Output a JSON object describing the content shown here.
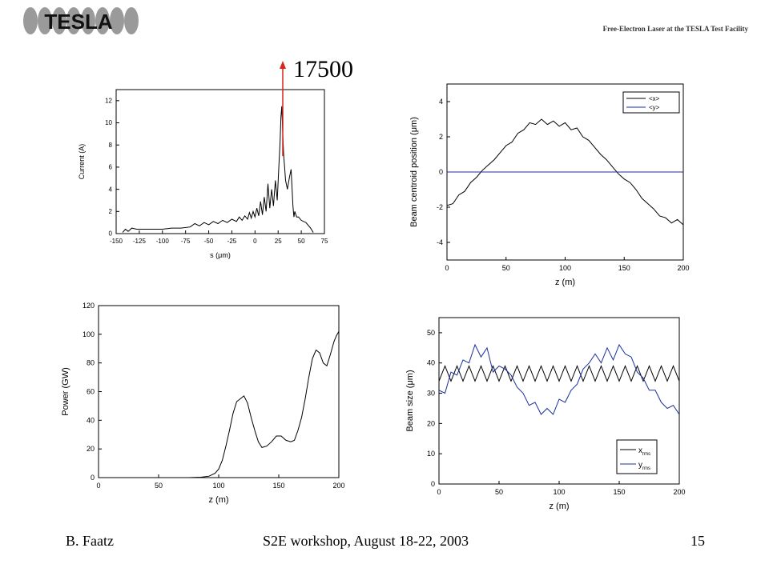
{
  "header": {
    "logo_text": "TESLA",
    "subtitle": "Free-Electron Laser at the TESLA Test Facility"
  },
  "annotation": {
    "text": "17500",
    "color": "#d8261d"
  },
  "footer": {
    "author": "B. Faatz",
    "event": "S2E workshop, August 18-22, 2003",
    "page": "15"
  },
  "chart_data": [
    {
      "type": "line",
      "xlabel": "s (μm)",
      "ylabel": "Current (A)",
      "xlim": [
        -150,
        75
      ],
      "ylim": [
        0,
        13
      ],
      "xticks": [
        -150,
        -125,
        -100,
        -75,
        -50,
        -25,
        0,
        25,
        50,
        75
      ],
      "yticks": [
        0,
        2,
        4,
        6,
        8,
        10,
        12
      ],
      "series": [
        {
          "name": "",
          "color": "#000000",
          "x": [
            -143,
            -140,
            -137,
            -133,
            -128,
            -120,
            -110,
            -100,
            -90,
            -80,
            -70,
            -65,
            -60,
            -55,
            -50,
            -45,
            -40,
            -35,
            -30,
            -25,
            -20,
            -17,
            -14,
            -11,
            -8,
            -6,
            -4,
            -2,
            0,
            2,
            4,
            6,
            8,
            10,
            12,
            14,
            16,
            18,
            20,
            22,
            24,
            26,
            27,
            28,
            29,
            30,
            31,
            32,
            33,
            35,
            37,
            39,
            41,
            42,
            43,
            45,
            47,
            50,
            55,
            60,
            63
          ],
          "y": [
            0.1,
            0.4,
            0.2,
            0.5,
            0.4,
            0.4,
            0.4,
            0.4,
            0.5,
            0.5,
            0.6,
            0.9,
            0.7,
            1.0,
            0.8,
            1.1,
            0.9,
            1.2,
            1.0,
            1.3,
            1.1,
            1.5,
            1.2,
            1.6,
            1.3,
            1.9,
            1.4,
            2.0,
            1.5,
            2.3,
            1.6,
            2.9,
            1.7,
            3.3,
            2.0,
            4.5,
            2.3,
            4.0,
            2.5,
            4.8,
            3.0,
            6.5,
            8.0,
            10.5,
            11.5,
            9.0,
            7.0,
            6.0,
            4.8,
            4.0,
            5.0,
            5.8,
            2.5,
            1.5,
            2.0,
            1.5,
            1.5,
            1.2,
            1.0,
            0.5,
            0.1
          ]
        }
      ],
      "grid": false
    },
    {
      "type": "line",
      "xlabel": "z (m)",
      "ylabel": "Beam centroid position (μm)",
      "xlim": [
        0,
        200
      ],
      "ylim": [
        -5,
        5
      ],
      "xticks": [
        0,
        50,
        100,
        150,
        200
      ],
      "yticks": [
        -4,
        -2,
        0,
        2,
        4
      ],
      "legend": "top-right",
      "series": [
        {
          "name": "<x>",
          "color": "#000000",
          "x": [
            0,
            5,
            10,
            15,
            20,
            25,
            30,
            35,
            40,
            45,
            50,
            55,
            60,
            65,
            70,
            75,
            80,
            85,
            90,
            95,
            100,
            105,
            110,
            115,
            120,
            125,
            130,
            135,
            140,
            145,
            150,
            155,
            160,
            165,
            170,
            175,
            180,
            185,
            190,
            195,
            200
          ],
          "y": [
            -1.9,
            -1.8,
            -1.3,
            -1.1,
            -0.6,
            -0.3,
            0.1,
            0.4,
            0.7,
            1.1,
            1.5,
            1.7,
            2.2,
            2.4,
            2.8,
            2.7,
            3.0,
            2.7,
            2.9,
            2.6,
            2.8,
            2.4,
            2.5,
            2.0,
            1.8,
            1.4,
            1.0,
            0.7,
            0.3,
            -0.1,
            -0.4,
            -0.6,
            -1.0,
            -1.5,
            -1.8,
            -2.1,
            -2.5,
            -2.6,
            -2.9,
            -2.7,
            -3.0
          ]
        },
        {
          "name": "<y>",
          "color": "#1a2fa0",
          "x": [
            0,
            200
          ],
          "y": [
            0,
            0
          ]
        }
      ],
      "grid": false
    },
    {
      "type": "line",
      "xlabel": "z (m)",
      "ylabel": "Power (GW)",
      "xlim": [
        0,
        200
      ],
      "ylim": [
        0,
        120
      ],
      "xticks": [
        0,
        50,
        100,
        150,
        200
      ],
      "yticks": [
        0,
        20,
        40,
        60,
        80,
        100,
        120
      ],
      "series": [
        {
          "name": "",
          "color": "#000000",
          "x": [
            0,
            20,
            40,
            60,
            75,
            85,
            92,
            97,
            100,
            103,
            106,
            109,
            112,
            115,
            118,
            121,
            124,
            127,
            130,
            133,
            136,
            140,
            144,
            148,
            152,
            156,
            160,
            163,
            166,
            169,
            172,
            175,
            178,
            181,
            184,
            187,
            190,
            193,
            196,
            198,
            200
          ],
          "y": [
            0,
            0,
            0,
            0,
            0,
            0.3,
            1,
            3,
            6,
            12,
            22,
            33,
            45,
            53,
            55,
            57,
            52,
            42,
            33,
            25,
            21,
            22,
            25,
            29,
            29,
            26,
            25,
            26,
            33,
            42,
            55,
            70,
            83,
            89,
            87,
            80,
            78,
            86,
            95,
            99,
            102
          ]
        }
      ],
      "grid": false
    },
    {
      "type": "line",
      "xlabel": "z (m)",
      "ylabel": "Beam size (μm)",
      "xlim": [
        0,
        200
      ],
      "ylim": [
        0,
        55
      ],
      "xticks": [
        0,
        50,
        100,
        150,
        200
      ],
      "yticks": [
        0,
        10,
        20,
        30,
        40,
        50
      ],
      "legend": "bottom-right",
      "series": [
        {
          "name": "x_rms",
          "color": "#000000",
          "x": [
            0,
            5,
            10,
            15,
            20,
            25,
            30,
            35,
            40,
            45,
            50,
            55,
            60,
            65,
            70,
            75,
            80,
            85,
            90,
            95,
            100,
            105,
            110,
            115,
            120,
            125,
            130,
            135,
            140,
            145,
            150,
            155,
            160,
            165,
            170,
            175,
            180,
            185,
            190,
            195,
            200
          ],
          "y": [
            34,
            39,
            34,
            39,
            34,
            39,
            34,
            39,
            34,
            39,
            34,
            39,
            34,
            39,
            34,
            39,
            34,
            39,
            34,
            39,
            34,
            39,
            34,
            39,
            34,
            39,
            34,
            39,
            34,
            39,
            34,
            39,
            34,
            39,
            34,
            39,
            34,
            39,
            34,
            39,
            34
          ]
        },
        {
          "name": "y_rms",
          "color": "#1a2fa0",
          "x": [
            0,
            5,
            10,
            15,
            20,
            25,
            30,
            35,
            40,
            45,
            50,
            55,
            60,
            65,
            70,
            75,
            80,
            85,
            90,
            95,
            100,
            105,
            110,
            115,
            120,
            125,
            130,
            135,
            140,
            145,
            150,
            155,
            160,
            165,
            170,
            175,
            180,
            185,
            190,
            195,
            200
          ],
          "y": [
            31,
            30,
            37,
            36,
            41,
            40,
            46,
            42,
            45,
            37,
            39,
            38,
            36,
            32,
            30,
            26,
            27,
            23,
            25,
            23,
            28,
            27,
            31,
            33,
            38,
            40,
            43,
            40,
            45,
            41,
            46,
            43,
            42,
            37,
            35,
            31,
            31,
            27,
            25,
            26,
            23
          ]
        }
      ],
      "grid": false
    }
  ]
}
